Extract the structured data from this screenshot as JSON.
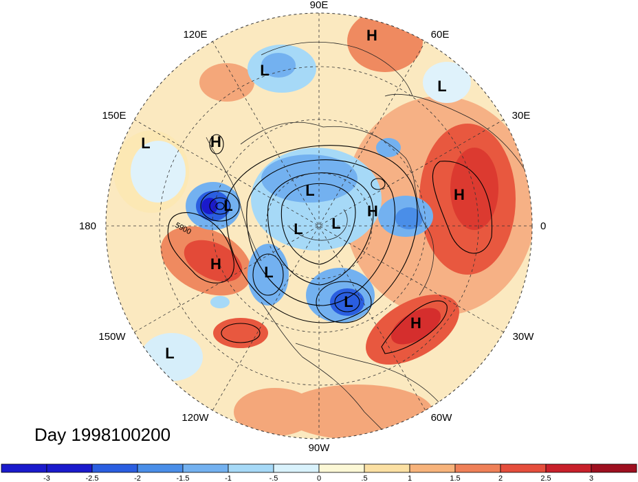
{
  "day_label": "Day 1998100200",
  "contour_label": "5900",
  "longitude_labels": {
    "north": "90E",
    "e120": "120E",
    "e60": "60E",
    "e150": "150E",
    "e30": "30E",
    "west": "180",
    "east": "0",
    "w150": "150W",
    "w30": "30W",
    "w120": "120W",
    "w60": "60W",
    "south": "90W"
  },
  "pressure_centers": {
    "symbols": [
      "H",
      "L",
      "L",
      "H",
      "L",
      "H",
      "L",
      "L",
      "L",
      "L",
      "H",
      "H",
      "H",
      "L",
      "L",
      "H",
      "L"
    ]
  },
  "colorbar": {
    "tick_labels": [
      "-3",
      "-2.5",
      "-2",
      "-1.5",
      "-1",
      "-.5",
      "0",
      ".5",
      "1",
      "1.5",
      "2",
      "2.5",
      "3"
    ],
    "colors": [
      "#1a1acc",
      "#2a5ee0",
      "#4a8ee8",
      "#73b1f0",
      "#a6d9f7",
      "#d9f2fc",
      "#fcf8d6",
      "#fbe0a3",
      "#f7b37b",
      "#ef8058",
      "#e54e3c",
      "#c8202a",
      "#9e0f1f"
    ]
  }
}
